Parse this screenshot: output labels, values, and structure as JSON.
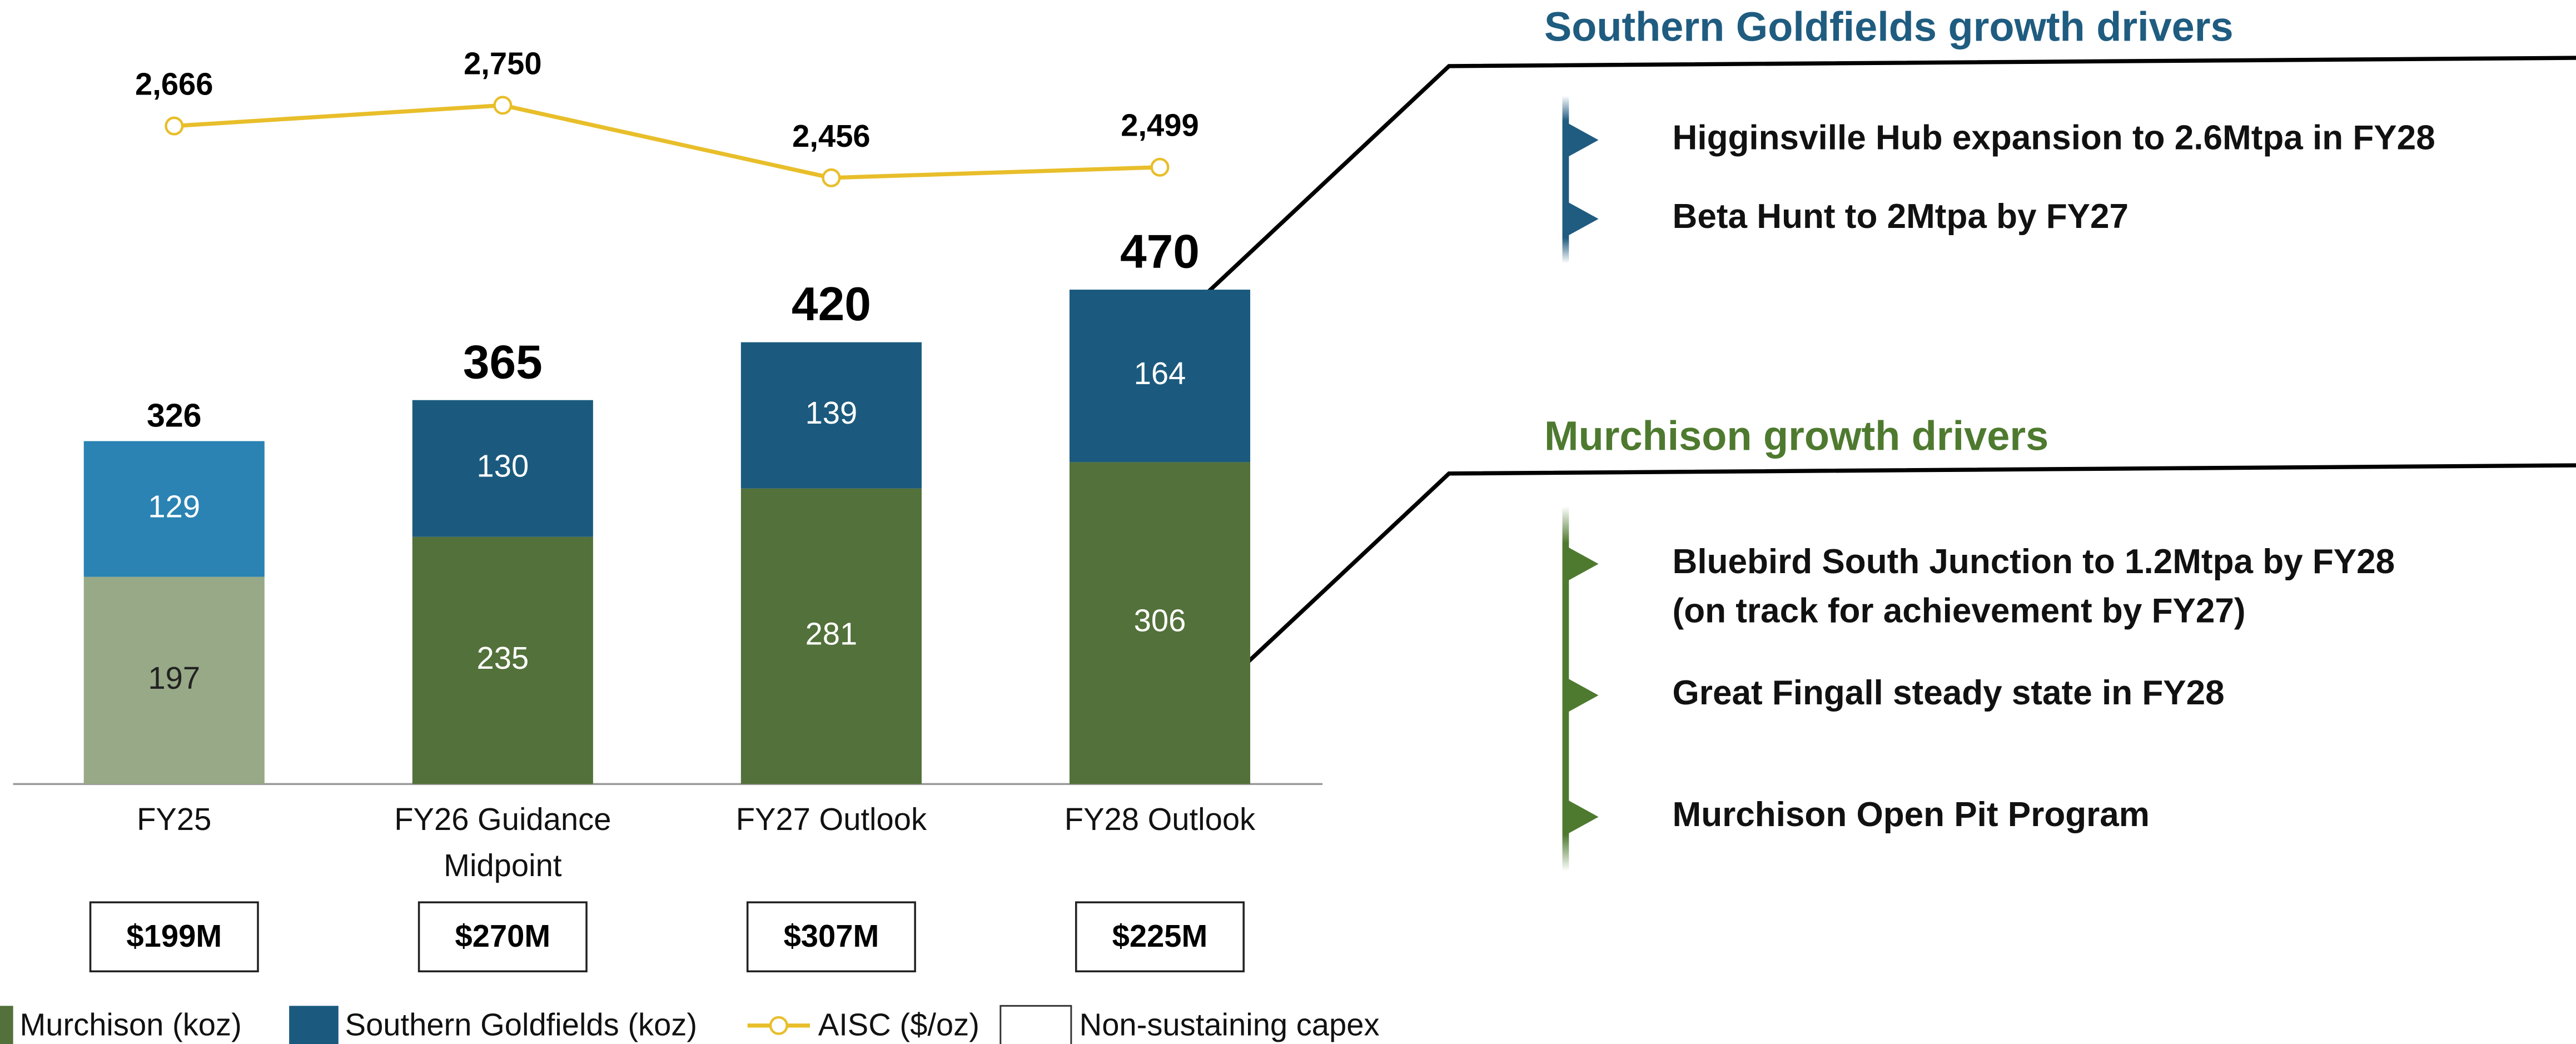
{
  "chart_data": {
    "type": "bar",
    "stacked": true,
    "categories": [
      "FY25",
      "FY26 Guidance Midpoint",
      "FY27 Outlook",
      "FY28 Outlook"
    ],
    "series": [
      {
        "name": "Murchison (koz)",
        "color": "#53713a",
        "colors": [
          "#97a986",
          "#53713a",
          "#53713a",
          "#53713a"
        ],
        "values": [
          197,
          235,
          281,
          306
        ]
      },
      {
        "name": "Southern Goldfields (koz)",
        "color": "#1b5a7e",
        "colors": [
          "#2a83b3",
          "#1b5a7e",
          "#1b5a7e",
          "#1b5a7e"
        ],
        "values": [
          129,
          130,
          139,
          164
        ]
      },
      {
        "name": "AISC ($/oz)",
        "type": "line",
        "axis": "y2",
        "color": "#e8be2a",
        "values": [
          2666,
          2750,
          2456,
          2499
        ],
        "value_labels": [
          "2,666",
          "2,750",
          "2,456",
          "2,499"
        ]
      }
    ],
    "totals": [
      326,
      365,
      420,
      470
    ],
    "capex": {
      "name": "Non-sustaining capex",
      "values": [
        199,
        270,
        307,
        225
      ],
      "value_labels": [
        "$199M",
        "$270M",
        "$307M",
        "$225M"
      ]
    },
    "ylim": [
      0,
      745
    ],
    "y2lim": [
      0,
      3175
    ]
  },
  "panels": [
    {
      "title": "Southern Goldfields growth drivers",
      "color": "#1f5c80",
      "bullets": [
        [
          "Higginsville Hub expansion to 2.6Mtpa in FY28"
        ],
        [
          "Beta Hunt to 2Mtpa by FY27"
        ]
      ]
    },
    {
      "title": "Murchison growth drivers",
      "color": "#4e7a2f",
      "bullets": [
        [
          "Bluebird South Junction to 1.2Mtpa by FY28",
          "(on track for achievement by FY27)"
        ],
        [
          "Great Fingall steady state in FY28"
        ],
        [
          "Murchison Open Pit Program"
        ]
      ]
    }
  ]
}
